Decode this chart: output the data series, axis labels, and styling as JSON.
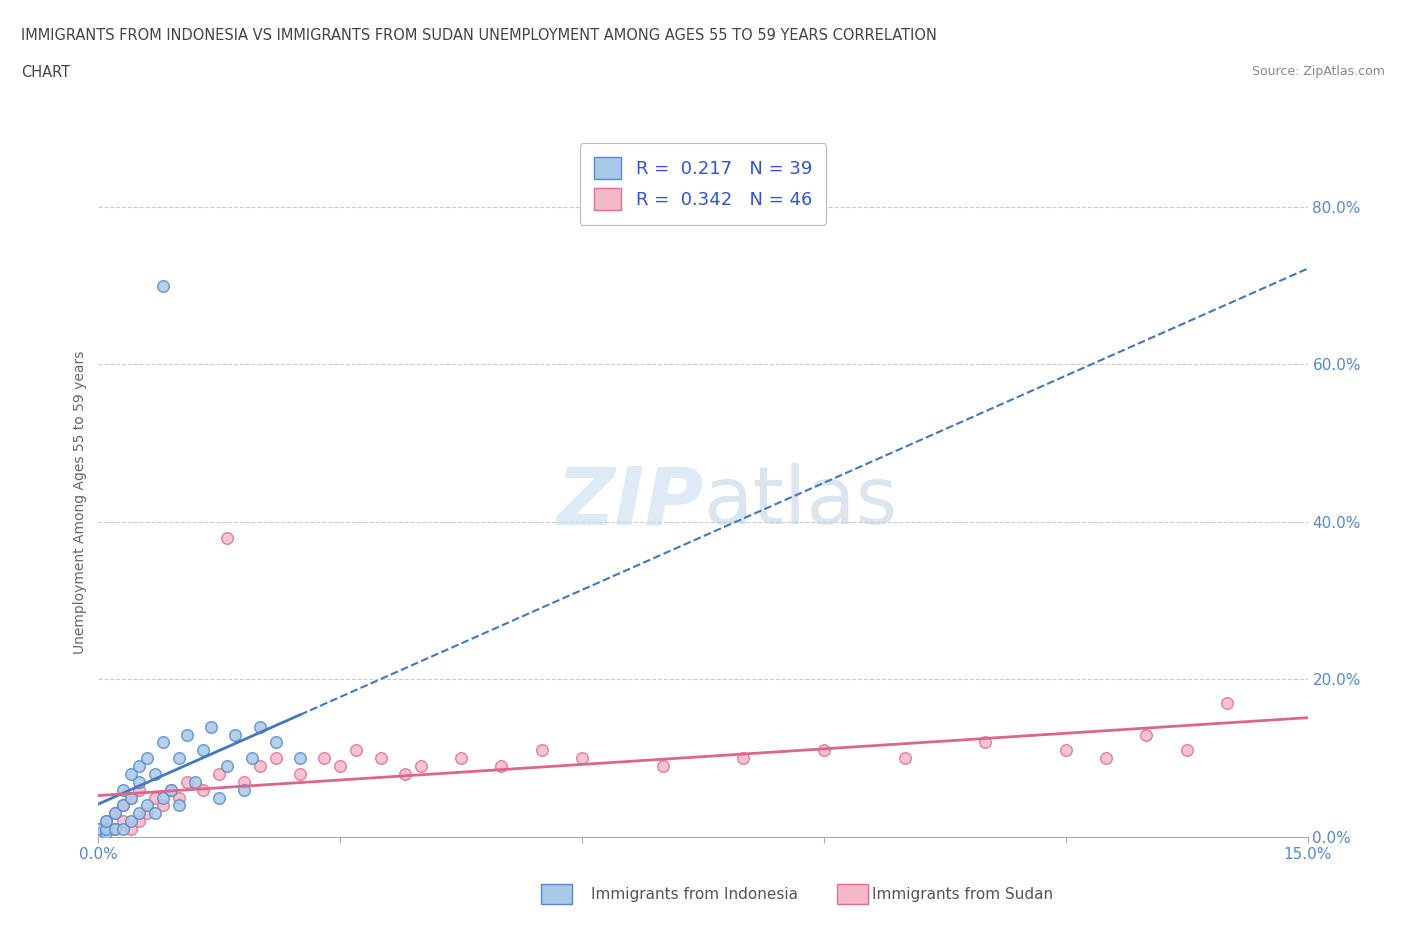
{
  "title_line1": "IMMIGRANTS FROM INDONESIA VS IMMIGRANTS FROM SUDAN UNEMPLOYMENT AMONG AGES 55 TO 59 YEARS CORRELATION",
  "title_line2": "CHART",
  "source_text": "Source: ZipAtlas.com",
  "ylabel": "Unemployment Among Ages 55 to 59 years",
  "xlim": [
    0.0,
    0.15
  ],
  "ylim": [
    0.0,
    0.85
  ],
  "xtick_positions": [
    0.0,
    0.03,
    0.06,
    0.09,
    0.12,
    0.15
  ],
  "xtick_labels": [
    "0.0%",
    "",
    "",
    "",
    "",
    "15.0%"
  ],
  "ytick_labels_right": [
    "0.0%",
    "20.0%",
    "40.0%",
    "60.0%",
    "80.0%"
  ],
  "yticks_right": [
    0.0,
    0.2,
    0.4,
    0.6,
    0.8
  ],
  "indonesia_color": "#a8c8e8",
  "sudan_color": "#f4b8c8",
  "indonesia_edge": "#5588cc",
  "sudan_edge": "#e07090",
  "R_indonesia": 0.217,
  "N_indonesia": 39,
  "R_sudan": 0.342,
  "N_sudan": 46,
  "indonesia_line_color": "#4477bb",
  "sudan_line_color": "#dd6688",
  "indonesia_scatter_x": [
    0.0,
    0.0,
    0.0,
    0.001,
    0.001,
    0.001,
    0.002,
    0.002,
    0.003,
    0.003,
    0.003,
    0.004,
    0.004,
    0.004,
    0.005,
    0.005,
    0.005,
    0.006,
    0.006,
    0.007,
    0.007,
    0.008,
    0.008,
    0.009,
    0.01,
    0.01,
    0.011,
    0.012,
    0.013,
    0.014,
    0.015,
    0.016,
    0.017,
    0.018,
    0.019,
    0.02,
    0.022,
    0.025,
    0.008
  ],
  "indonesia_scatter_y": [
    0.0,
    0.005,
    0.01,
    0.005,
    0.01,
    0.02,
    0.01,
    0.03,
    0.01,
    0.04,
    0.06,
    0.02,
    0.05,
    0.08,
    0.03,
    0.07,
    0.09,
    0.04,
    0.1,
    0.03,
    0.08,
    0.05,
    0.12,
    0.06,
    0.04,
    0.1,
    0.13,
    0.07,
    0.11,
    0.14,
    0.05,
    0.09,
    0.13,
    0.06,
    0.1,
    0.14,
    0.12,
    0.1,
    0.7
  ],
  "sudan_scatter_x": [
    0.0,
    0.0,
    0.0,
    0.001,
    0.001,
    0.002,
    0.002,
    0.003,
    0.003,
    0.004,
    0.004,
    0.005,
    0.005,
    0.006,
    0.007,
    0.008,
    0.009,
    0.01,
    0.011,
    0.013,
    0.015,
    0.016,
    0.018,
    0.02,
    0.022,
    0.025,
    0.028,
    0.03,
    0.032,
    0.035,
    0.038,
    0.04,
    0.045,
    0.05,
    0.055,
    0.06,
    0.07,
    0.08,
    0.09,
    0.1,
    0.11,
    0.12,
    0.125,
    0.13,
    0.135,
    0.14
  ],
  "sudan_scatter_y": [
    0.0,
    0.005,
    0.01,
    0.01,
    0.02,
    0.01,
    0.03,
    0.02,
    0.04,
    0.01,
    0.05,
    0.02,
    0.06,
    0.03,
    0.05,
    0.04,
    0.06,
    0.05,
    0.07,
    0.06,
    0.08,
    0.38,
    0.07,
    0.09,
    0.1,
    0.08,
    0.1,
    0.09,
    0.11,
    0.1,
    0.08,
    0.09,
    0.1,
    0.09,
    0.11,
    0.1,
    0.09,
    0.1,
    0.11,
    0.1,
    0.12,
    0.11,
    0.1,
    0.13,
    0.11,
    0.17
  ],
  "background_color": "#ffffff",
  "grid_color": "#cccccc",
  "indonesia_line_x_solid_end": 0.04,
  "indonesia_line_intercept": 0.01,
  "indonesia_line_slope": 3.5,
  "sudan_line_intercept": 0.02,
  "sudan_line_slope": 1.25
}
